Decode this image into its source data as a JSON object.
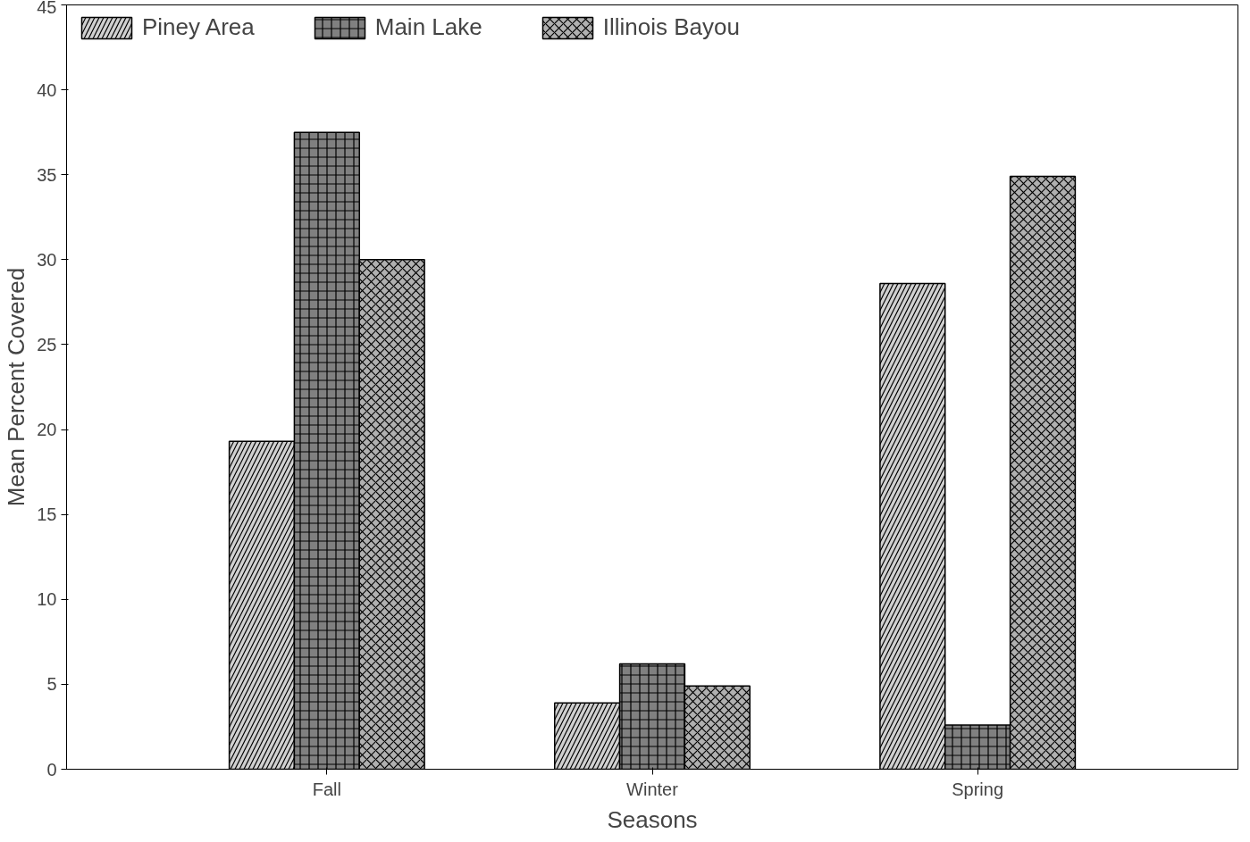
{
  "chart_data": {
    "type": "bar",
    "xlabel": "Seasons",
    "ylabel": "Mean Percent Covered",
    "categories": [
      "Fall",
      "Winter",
      "Spring"
    ],
    "series": [
      {
        "name": "Piney Area",
        "color": "#d0d0d0",
        "values": [
          19.3,
          3.9,
          28.6
        ]
      },
      {
        "name": "Main Lake",
        "color": "#808080",
        "values": [
          37.5,
          6.2,
          2.6
        ]
      },
      {
        "name": "Illinois Bayou",
        "color": "#b0b0b0",
        "values": [
          30,
          4.9,
          34.9
        ]
      }
    ],
    "ylim": [
      0,
      45
    ],
    "yticks": [
      0,
      5,
      10,
      15,
      20,
      25,
      30,
      35,
      40,
      45
    ],
    "grid": false,
    "legend": "top"
  }
}
